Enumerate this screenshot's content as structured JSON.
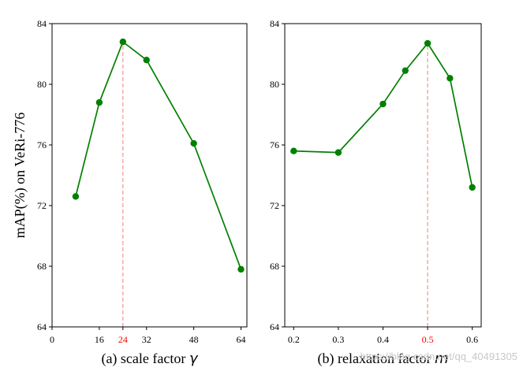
{
  "chart_data": [
    {
      "type": "line",
      "xlabel_prefix": "(a) scale factor ",
      "xlabel_symbol": "γ",
      "ylabel": "mAP(%) on VeRi-776",
      "xlim": [
        0,
        66
      ],
      "ylim": [
        64,
        84
      ],
      "xticks": [
        0,
        16,
        24,
        32,
        48,
        64
      ],
      "xtick_labels": [
        "0",
        "16",
        "24",
        "32",
        "48",
        "64"
      ],
      "yticks": [
        64,
        68,
        72,
        76,
        80,
        84
      ],
      "ytick_labels": [
        "64",
        "68",
        "72",
        "76",
        "80",
        "84"
      ],
      "highlight_x": 24,
      "series": [
        {
          "color": "#008000",
          "x": [
            8,
            16,
            24,
            32,
            48,
            64
          ],
          "y": [
            72.6,
            78.8,
            82.8,
            81.6,
            76.1,
            67.8
          ]
        }
      ]
    },
    {
      "type": "line",
      "xlabel_prefix": "(b) relaxation factor ",
      "xlabel_symbol": "m",
      "ylabel": "",
      "xlim": [
        0.18,
        0.62
      ],
      "ylim": [
        64,
        84
      ],
      "xticks": [
        0.2,
        0.3,
        0.4,
        0.5,
        0.6
      ],
      "xtick_labels": [
        "0.2",
        "0.3",
        "0.4",
        "0.5",
        "0.6"
      ],
      "yticks": [
        64,
        68,
        72,
        76,
        80,
        84
      ],
      "ytick_labels": [
        "64",
        "68",
        "72",
        "76",
        "80",
        "84"
      ],
      "highlight_x": 0.5,
      "series": [
        {
          "color": "#008000",
          "x": [
            0.2,
            0.3,
            0.4,
            0.45,
            0.5,
            0.55,
            0.6
          ],
          "y": [
            75.6,
            75.5,
            78.7,
            80.9,
            82.7,
            80.4,
            73.2
          ]
        }
      ]
    }
  ],
  "colors": {
    "line": "#008000",
    "highlight": "#ff0000",
    "guide": "#f08080"
  },
  "watermark": "https://blog.csdn.net/qq_40491305"
}
